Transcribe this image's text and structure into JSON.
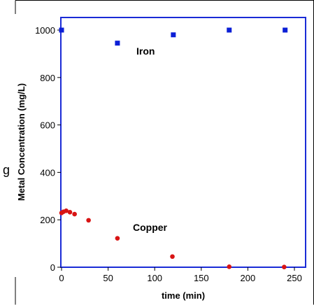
{
  "chart_data": {
    "type": "scatter",
    "xlabel": "time (min)",
    "ylabel": "Metal Concentration (mg/L)",
    "xlim": [
      0,
      250
    ],
    "ylim": [
      0,
      1050
    ],
    "xticks": [
      0,
      50,
      100,
      150,
      200,
      250
    ],
    "yticks": [
      0,
      200,
      400,
      600,
      800,
      1000
    ],
    "grid": false,
    "legend": "none",
    "series": [
      {
        "name": "Iron",
        "marker": "square",
        "color": "#0b1fd6",
        "x": [
          0,
          60,
          120,
          180,
          240
        ],
        "y": [
          1000,
          945,
          980,
          1000,
          1000
        ]
      },
      {
        "name": "Copper",
        "marker": "circle",
        "color": "#d81414",
        "x": [
          0,
          2,
          5,
          9,
          14,
          29,
          60,
          119,
          180,
          239
        ],
        "y": [
          229,
          234,
          238,
          232,
          224,
          198,
          122,
          45,
          2,
          1
        ]
      }
    ],
    "annotations": [
      {
        "text": "Iron",
        "series": "Iron"
      },
      {
        "text": "Copper",
        "series": "Copper"
      }
    ],
    "cropped_fragment": "g"
  }
}
